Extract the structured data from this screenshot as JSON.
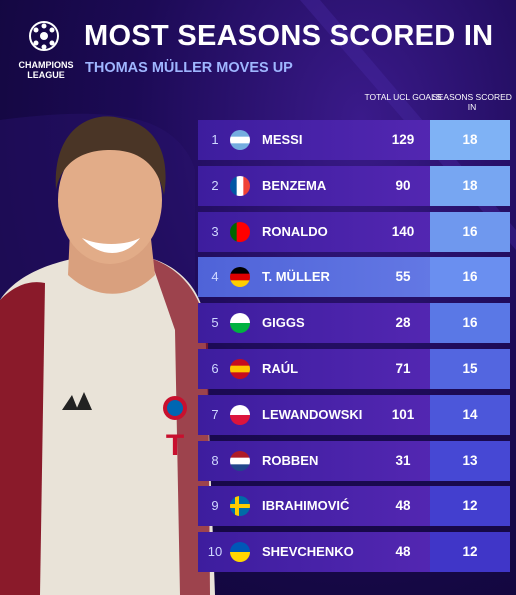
{
  "header": {
    "logo_text": "CHAMPIONS LEAGUE",
    "title": "MOST SEASONS SCORED IN",
    "subtitle": "THOMAS MÜLLER MOVES UP"
  },
  "table": {
    "columns": [
      "TOTAL UCL GOALS",
      "SEASONS SCORED IN"
    ],
    "rows": [
      [
        "1",
        "MESSI",
        "129",
        "18"
      ],
      [
        "2",
        "BENZEMA",
        "90",
        "18"
      ],
      [
        "3",
        "RONALDO",
        "140",
        "16"
      ],
      [
        "4",
        "T. MÜLLER",
        "55",
        "16"
      ],
      [
        "5",
        "GIGGS",
        "28",
        "16"
      ],
      [
        "6",
        "RAÚL",
        "71",
        "15"
      ],
      [
        "7",
        "LEWANDOWSKI",
        "101",
        "14"
      ],
      [
        "8",
        "ROBBEN",
        "31",
        "13"
      ],
      [
        "9",
        "IBRAHIMOVIĆ",
        "48",
        "12"
      ],
      [
        "10",
        "SHEVCHENKO",
        "48",
        "12"
      ]
    ]
  }
}
